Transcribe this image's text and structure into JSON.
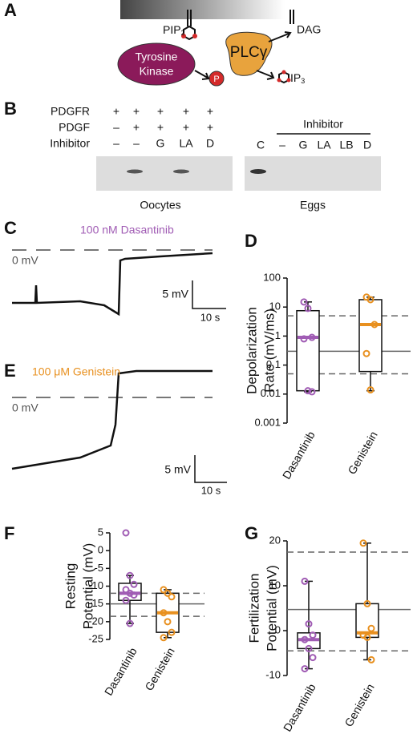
{
  "panel_labels": [
    "A",
    "B",
    "C",
    "D",
    "E",
    "F",
    "G"
  ],
  "diagram": {
    "pip": {
      "main": "PIP",
      "sub": "2"
    },
    "dag": "DAG",
    "plc": "PLCγ",
    "kinase": [
      "Tyrosine",
      "Kinase"
    ],
    "phospho": "P",
    "ip": {
      "main": "IP",
      "sub": "3"
    }
  },
  "blot": {
    "row_labels": [
      "PDGFR",
      "PDGF",
      "Inhibitor"
    ],
    "oocyte_lanes": [
      [
        "+",
        "+",
        "+",
        "+",
        "+"
      ],
      [
        "–",
        "+",
        "+",
        "+",
        "+"
      ],
      [
        "–",
        "–",
        "G",
        "LA",
        "D"
      ]
    ],
    "egg_header": "Inhibitor",
    "egg_lanes": [
      "C",
      "–",
      "G",
      "LA",
      "LB",
      "D"
    ],
    "captions": [
      "Oocytes",
      "Eggs"
    ]
  },
  "traces": [
    {
      "title": "100 nM Dasantinib",
      "color": "#a05cb4",
      "zero_label": "0 mV",
      "scale_y": "5 mV",
      "scale_x": "10 s"
    },
    {
      "title": "100 μM Genistein",
      "color": "#e8901f",
      "zero_label": "0 mV",
      "scale_y": "5 mV",
      "scale_x": "10 s"
    }
  ],
  "chart_data": [
    {
      "type": "box",
      "ylabel": [
        "Depolarization",
        "Rate (mV/ms)"
      ],
      "log_y": true,
      "ylim": [
        0.001,
        100
      ],
      "yticks": [
        0.001,
        0.01,
        0.1,
        1,
        10,
        100
      ],
      "reference_lines": [
        {
          "value": 5,
          "style": "dashed"
        },
        {
          "value": 0.05,
          "style": "dashed"
        },
        {
          "value": 0.3,
          "style": "solid"
        }
      ],
      "series": [
        {
          "name": "Dasantinib",
          "color": "#a05cb4",
          "whisker": [
            0.012,
            15
          ],
          "box": [
            0.013,
            7.5
          ],
          "median": 0.9,
          "points": [
            15,
            9,
            0.9,
            0.8,
            0.013,
            0.012
          ]
        },
        {
          "name": "Genistein",
          "color": "#e8901f",
          "whisker": [
            0.013,
            22
          ],
          "box": [
            0.06,
            18
          ],
          "median": 2.5,
          "points": [
            22,
            18,
            2.5,
            0.25,
            0.014
          ]
        }
      ]
    },
    {
      "type": "box",
      "ylabel": [
        "Resting",
        "Potential (mV)"
      ],
      "log_y": false,
      "ylim": [
        -25,
        5
      ],
      "yticks": [
        -25,
        -20,
        -15,
        -10,
        -5,
        0,
        5
      ],
      "reference_lines": [
        {
          "value": -12,
          "style": "dashed"
        },
        {
          "value": -18.5,
          "style": "dashed"
        },
        {
          "value": -15,
          "style": "solid"
        }
      ],
      "series": [
        {
          "name": "Dasantinib",
          "color": "#a05cb4",
          "whisker": [
            -20.5,
            -7
          ],
          "box": [
            -14,
            -9.2
          ],
          "median": -12,
          "points": [
            5,
            -7,
            -9.5,
            -11,
            -12,
            -12.5,
            -14,
            -20.5
          ]
        },
        {
          "name": "Genistein",
          "color": "#e8901f",
          "whisker": [
            -24.5,
            -11
          ],
          "box": [
            -23,
            -12
          ],
          "median": -17.5,
          "points": [
            -11,
            -12,
            -13,
            -17.5,
            -20,
            -23,
            -24.5
          ]
        }
      ]
    },
    {
      "type": "box",
      "ylabel": [
        "Fertilization",
        "Potential (mV)"
      ],
      "log_y": false,
      "ylim": [
        -10,
        20
      ],
      "yticks": [
        -10,
        0,
        10,
        20
      ],
      "reference_lines": [
        {
          "value": 17.5,
          "style": "dashed"
        },
        {
          "value": -4.5,
          "style": "dashed"
        },
        {
          "value": 4.7,
          "style": "solid"
        }
      ],
      "series": [
        {
          "name": "Dasantinib",
          "color": "#a05cb4",
          "whisker": [
            -8.5,
            11
          ],
          "box": [
            -4,
            -0.5
          ],
          "median": -2,
          "points": [
            11,
            1.5,
            -1,
            -2,
            -4,
            -6,
            -8.5
          ]
        },
        {
          "name": "Genistein",
          "color": "#e8901f",
          "whisker": [
            -6.5,
            19.5
          ],
          "box": [
            -1.5,
            6
          ],
          "median": -0.5,
          "points": [
            19.5,
            6,
            0.5,
            -1,
            -1.5,
            -6.5
          ]
        }
      ]
    }
  ]
}
